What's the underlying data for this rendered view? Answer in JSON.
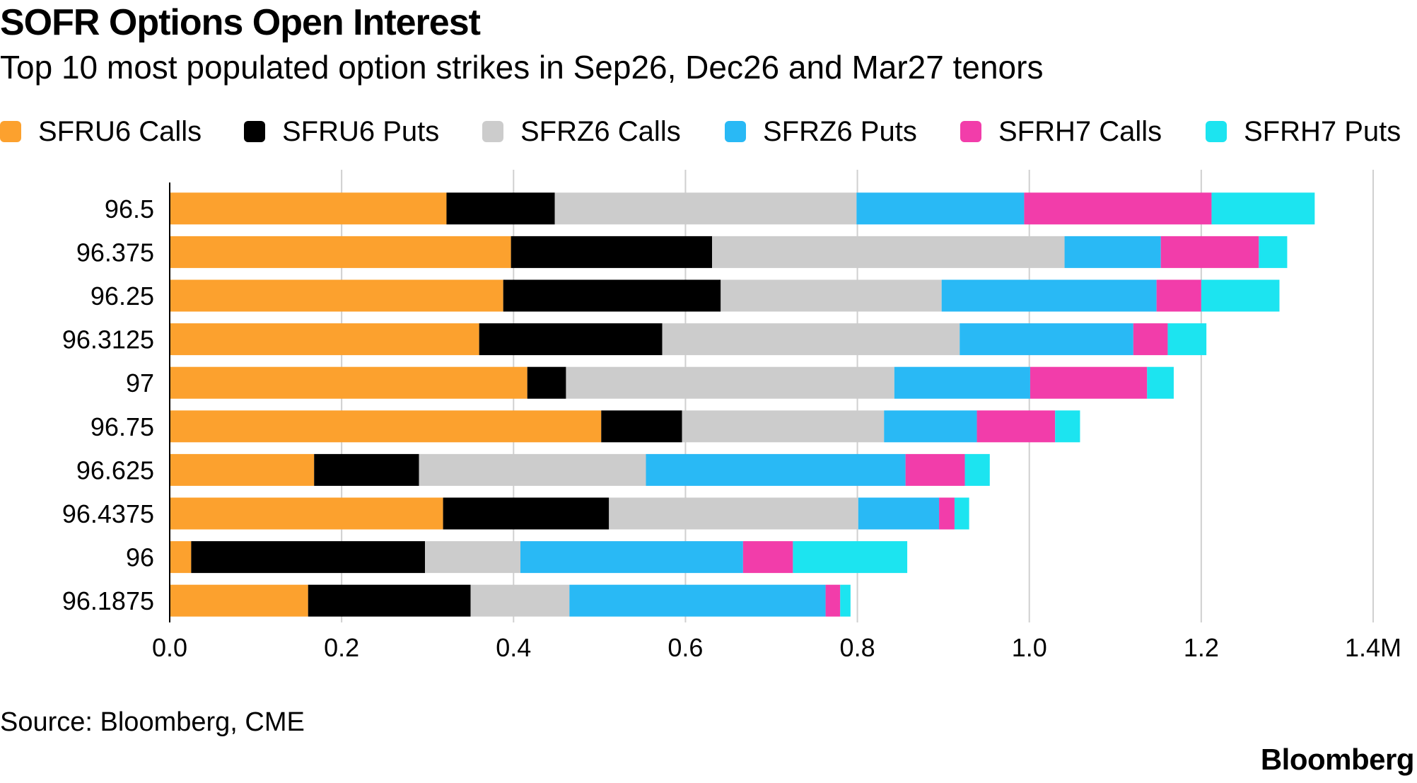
{
  "title": "SOFR Options Open Interest",
  "subtitle": "Top 10 most populated option strikes in Sep26, Dec26 and Mar27 tenors",
  "source": "Source: Bloomberg, CME",
  "brand": "Bloomberg",
  "chart_data": {
    "type": "bar",
    "orientation": "horizontal",
    "stacked": true,
    "title": "SOFR Options Open Interest",
    "subtitle": "Top 10 most populated option strikes in Sep26, Dec26 and Mar27 tenors",
    "categories": [
      "96.5",
      "96.375",
      "96.25",
      "96.3125",
      "97",
      "96.75",
      "96.625",
      "96.4375",
      "96",
      "96.1875"
    ],
    "x_ticks": [
      "0.0",
      "0.2",
      "0.4",
      "0.6",
      "0.8",
      "1.0",
      "1.2",
      "1.4M"
    ],
    "xlim": [
      0,
      1400000
    ],
    "grid": "vertical",
    "legend_position": "top",
    "series": [
      {
        "name": "SFRU6 Calls",
        "color": "#FCA12E",
        "values": [
          322000,
          397000,
          388000,
          360000,
          416000,
          502000,
          168000,
          318000,
          25000,
          161000
        ]
      },
      {
        "name": "SFRU6 Puts",
        "color": "#000000",
        "values": [
          126000,
          234000,
          253000,
          213000,
          45000,
          94000,
          122000,
          193000,
          272000,
          189000
        ]
      },
      {
        "name": "SFRZ6 Calls",
        "color": "#CCCCCC",
        "values": [
          351000,
          410000,
          257000,
          346000,
          382000,
          235000,
          264000,
          290000,
          111000,
          115000
        ]
      },
      {
        "name": "SFRZ6 Puts",
        "color": "#29B9F5",
        "values": [
          195000,
          112000,
          250000,
          202000,
          158000,
          108000,
          302000,
          94000,
          259000,
          298000
        ]
      },
      {
        "name": "SFRH7 Calls",
        "color": "#F23DAA",
        "values": [
          218000,
          114000,
          52000,
          40000,
          136000,
          91000,
          69000,
          18000,
          58000,
          17000
        ]
      },
      {
        "name": "SFRH7 Puts",
        "color": "#1CE4F0",
        "values": [
          120000,
          33000,
          91000,
          45000,
          31000,
          29000,
          29000,
          17000,
          133000,
          12000
        ]
      }
    ]
  }
}
